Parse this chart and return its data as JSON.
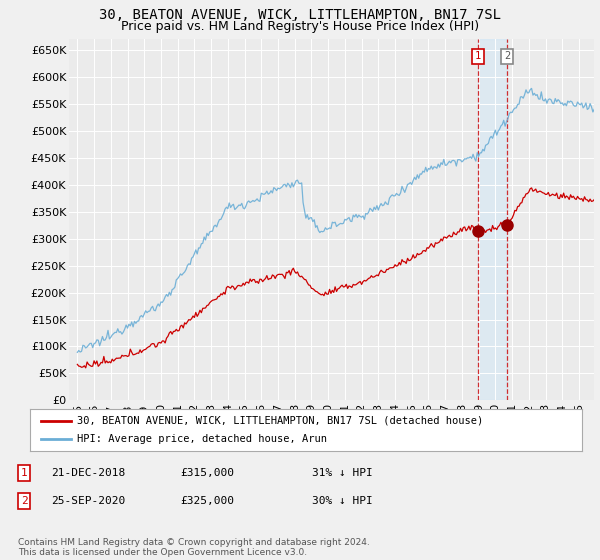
{
  "title": "30, BEATON AVENUE, WICK, LITTLEHAMPTON, BN17 7SL",
  "subtitle": "Price paid vs. HM Land Registry's House Price Index (HPI)",
  "ylim": [
    0,
    670000
  ],
  "yticks": [
    0,
    50000,
    100000,
    150000,
    200000,
    250000,
    300000,
    350000,
    400000,
    450000,
    500000,
    550000,
    600000,
    650000
  ],
  "ytick_labels": [
    "£0",
    "£50K",
    "£100K",
    "£150K",
    "£200K",
    "£250K",
    "£300K",
    "£350K",
    "£400K",
    "£450K",
    "£500K",
    "£550K",
    "£600K",
    "£650K"
  ],
  "hpi_color": "#6baed6",
  "price_color": "#cc0000",
  "background_color": "#ebebeb",
  "grid_color": "#ffffff",
  "shade_color": "#ddeeff",
  "legend_label_price": "30, BEATON AVENUE, WICK, LITTLEHAMPTON, BN17 7SL (detached house)",
  "legend_label_hpi": "HPI: Average price, detached house, Arun",
  "annotation1_date": "21-DEC-2018",
  "annotation1_price": "£315,000",
  "annotation1_hpi": "31% ↓ HPI",
  "annotation2_date": "25-SEP-2020",
  "annotation2_price": "£325,000",
  "annotation2_hpi": "30% ↓ HPI",
  "footnote": "Contains HM Land Registry data © Crown copyright and database right 2024.\nThis data is licensed under the Open Government Licence v3.0.",
  "title_fontsize": 10,
  "subtitle_fontsize": 9,
  "tick_fontsize": 8
}
